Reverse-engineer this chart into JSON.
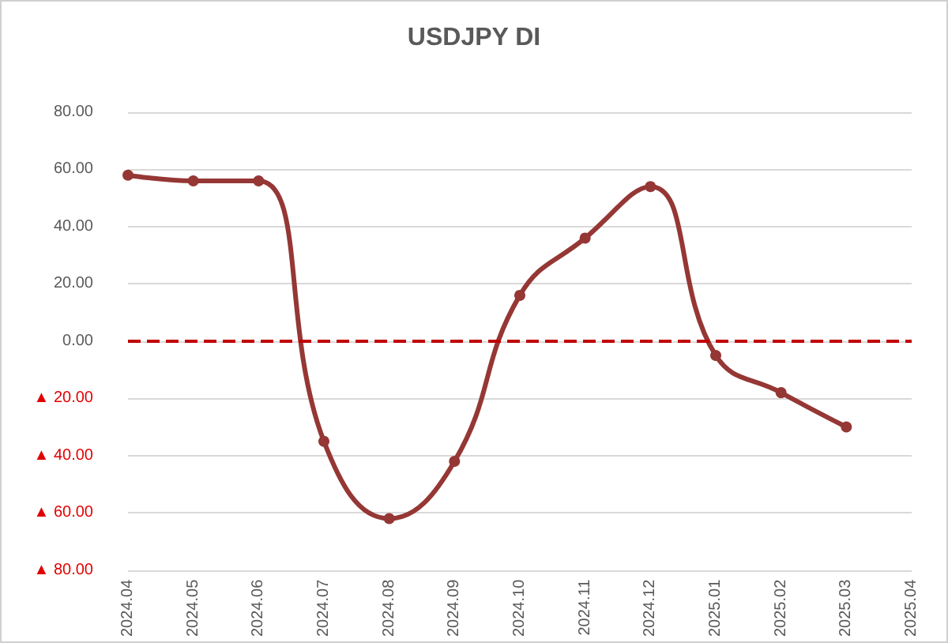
{
  "chart_data": {
    "type": "line",
    "title": "USDJPY DI",
    "categories": [
      "2024.04",
      "2024.05",
      "2024.06",
      "2024.07",
      "2024.08",
      "2024.09",
      "2024.10",
      "2024.11",
      "2024.12",
      "2025.01",
      "2025.02",
      "2025.03",
      "2025.04"
    ],
    "series": [
      {
        "color": "#953735",
        "values": [
          58,
          56,
          56,
          -35,
          -62,
          -42,
          16,
          36,
          54,
          -5,
          -18,
          -30,
          null
        ]
      }
    ],
    "ylim": [
      -80,
      80
    ],
    "yticks": [
      {
        "value": -80,
        "label": "▲ 80.00"
      },
      {
        "value": -60,
        "label": "▲ 60.00"
      },
      {
        "value": -40,
        "label": "▲ 40.00"
      },
      {
        "value": -20,
        "label": "▲ 20.00"
      },
      {
        "value": 0,
        "label": "0.00"
      },
      {
        "value": 20,
        "label": "20.00"
      },
      {
        "value": 40,
        "label": "40.00"
      },
      {
        "value": 60,
        "label": "60.00"
      },
      {
        "value": 80,
        "label": "80.00"
      }
    ],
    "ref_lines": [
      {
        "axis": "y",
        "value": 0,
        "color": "#c00000",
        "line_style": "dashed"
      }
    ],
    "grid": "y",
    "marker": "circle",
    "line_style": "solid"
  }
}
